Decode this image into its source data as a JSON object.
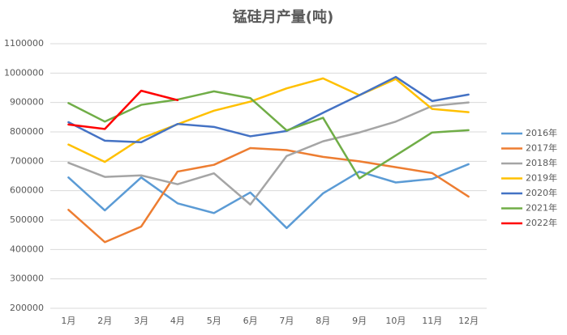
{
  "chart_data": {
    "type": "line",
    "title": "锰硅月产量(吨)",
    "categories": [
      "1月",
      "2月",
      "3月",
      "4月",
      "5月",
      "6月",
      "7月",
      "8月",
      "9月",
      "10月",
      "11月",
      "12月"
    ],
    "series": [
      {
        "name": "2016年",
        "color": "#5b9bd5",
        "values": [
          645000,
          533000,
          645000,
          557000,
          524000,
          594000,
          473000,
          591000,
          665000,
          628000,
          640000,
          690000
        ]
      },
      {
        "name": "2017年",
        "color": "#ed7d31",
        "values": [
          535000,
          425000,
          478000,
          665000,
          688000,
          745000,
          738000,
          715000,
          700000,
          680000,
          660000,
          580000
        ]
      },
      {
        "name": "2018年",
        "color": "#a5a5a5",
        "values": [
          695000,
          647000,
          652000,
          622000,
          659000,
          553000,
          718000,
          768000,
          798000,
          835000,
          888000,
          900000
        ]
      },
      {
        "name": "2019年",
        "color": "#ffc000",
        "values": [
          757000,
          698000,
          778000,
          826000,
          872000,
          903000,
          948000,
          982000,
          925000,
          980000,
          878000,
          867000
        ]
      },
      {
        "name": "2020年",
        "color": "#4472c4",
        "values": [
          833000,
          770000,
          765000,
          827000,
          817000,
          785000,
          803000,
          865000,
          925000,
          987000,
          905000,
          927000
        ]
      },
      {
        "name": "2021年",
        "color": "#70ad47",
        "values": [
          898000,
          835000,
          892000,
          910000,
          938000,
          915000,
          805000,
          848000,
          642000,
          720000,
          798000,
          806000
        ]
      },
      {
        "name": "2022年",
        "color": "#ff0000",
        "values": [
          825000,
          810000,
          940000,
          908000,
          null,
          null,
          null,
          null,
          null,
          null,
          null,
          null
        ]
      }
    ],
    "ylim": [
      200000,
      1100000
    ],
    "yticks": [
      200000,
      300000,
      400000,
      500000,
      600000,
      700000,
      800000,
      900000,
      1000000,
      1100000
    ],
    "grid": true,
    "legend": "right"
  }
}
